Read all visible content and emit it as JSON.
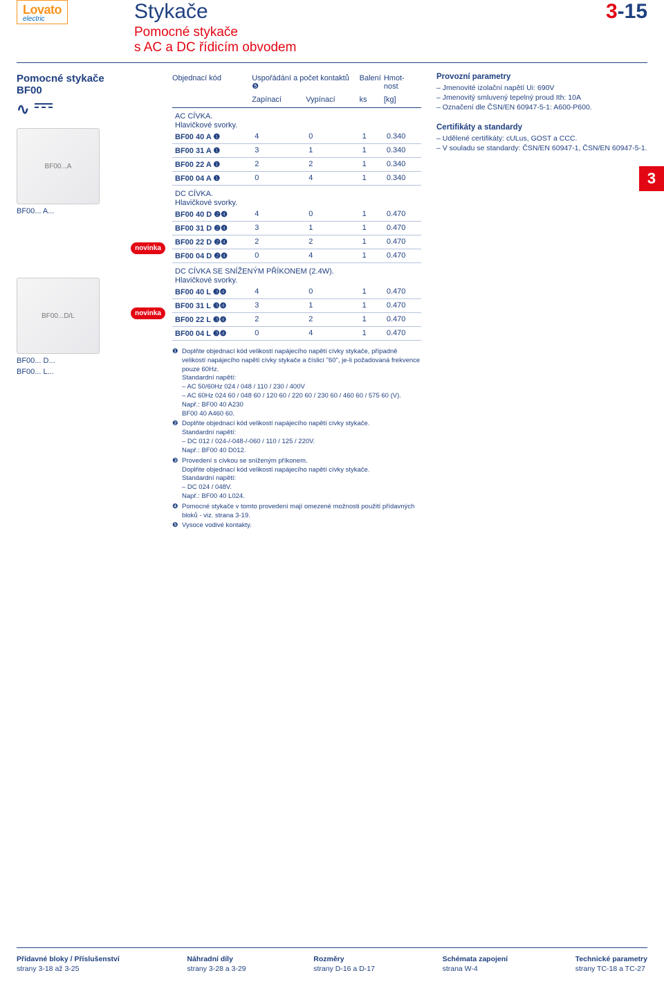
{
  "brand": {
    "name": "Lovato",
    "sub": "electric"
  },
  "page_number": {
    "prefix": "3",
    "suffix": "-15"
  },
  "header": {
    "title": "Stykače",
    "subtitle1": "Pomocné stykače",
    "subtitle2": "s AC a DC řídicím obvodem"
  },
  "left": {
    "section_title": "Pomocné stykače BF00",
    "captions": [
      "BF00... A...",
      "BF00... D...",
      "BF00... L..."
    ],
    "novinka": "novinka"
  },
  "table": {
    "headers": {
      "c1": "Objednací kód",
      "c2": "Uspořádání a počet kontaktů ❺",
      "c3": "Balení",
      "c4": "Hmot-nost",
      "s1": "Zapínací",
      "s2": "Vypínací",
      "s3": "ks",
      "s4": "[kg]"
    },
    "sections": [
      {
        "label": "AC CÍVKA.",
        "sub": "Hlavičkové svorky.",
        "rows": [
          {
            "code": "BF00 40 A ❶",
            "z": "4",
            "v": "0",
            "b": "1",
            "w": "0.340"
          },
          {
            "code": "BF00 31 A ❶",
            "z": "3",
            "v": "1",
            "b": "1",
            "w": "0.340"
          },
          {
            "code": "BF00 22 A ❶",
            "z": "2",
            "v": "2",
            "b": "1",
            "w": "0.340"
          },
          {
            "code": "BF00 04 A ❶",
            "z": "0",
            "v": "4",
            "b": "1",
            "w": "0.340"
          }
        ]
      },
      {
        "label": "DC CÍVKA.",
        "sub": "Hlavičkové svorky.",
        "rows": [
          {
            "code": "BF00 40 D ❷❹",
            "z": "4",
            "v": "0",
            "b": "1",
            "w": "0.470"
          },
          {
            "code": "BF00 31 D ❷❹",
            "z": "3",
            "v": "1",
            "b": "1",
            "w": "0.470"
          },
          {
            "code": "BF00 22 D ❷❹",
            "z": "2",
            "v": "2",
            "b": "1",
            "w": "0.470"
          },
          {
            "code": "BF00 04 D ❷❹",
            "z": "0",
            "v": "4",
            "b": "1",
            "w": "0.470"
          }
        ]
      },
      {
        "label": "DC CÍVKA SE SNÍŽENÝM PŘÍKONEM (2.4W).",
        "sub": "Hlavičkové svorky.",
        "rows": [
          {
            "code": "BF00 40 L ❸❹",
            "z": "4",
            "v": "0",
            "b": "1",
            "w": "0.470"
          },
          {
            "code": "BF00 31 L ❸❹",
            "z": "3",
            "v": "1",
            "b": "1",
            "w": "0.470"
          },
          {
            "code": "BF00 22 L ❸❹",
            "z": "2",
            "v": "2",
            "b": "1",
            "w": "0.470"
          },
          {
            "code": "BF00 04 L ❸❹",
            "z": "0",
            "v": "4",
            "b": "1",
            "w": "0.470"
          }
        ]
      }
    ]
  },
  "footnotes": [
    {
      "n": "❶",
      "t": "Doplňte objednací kód velikostí napájecího napětí cívky stykače, případně velikostí napájecího napětí cívky stykače a číslicí \"60\", je-li požadovaná frekvence pouze 60Hz.\nStandardní napětí:\n– AC 50/60Hz  024 / 048 / 110 / 230 / 400V\n– AC 60Hz      024 60 / 048 60 / 120 60 / 220 60 / 230 60 / 460 60 / 575 60 (V).\nNapř.:    BF00 40 A230\n             BF00 40 A460 60."
    },
    {
      "n": "❷",
      "t": "Doplňte objednací kód velikostí napájecího napětí cívky stykače.\nStandardní napětí:\n– DC      012 / 024-/-048-/-060 / 110 / 125 / 220V.\nNapř.:    BF00 40 D012."
    },
    {
      "n": "❸",
      "t": "Provedení s cívkou se sníženým příkonem.\nDoplňte objednací kód velikostí napájecího napětí cívky stykače.\nStandardní napětí:\n– DC      024 / 048V.\nNapř.:    BF00 40 L024."
    },
    {
      "n": "❹",
      "t": "Pomocné stykače v tomto provedení mají omezené možnosti použití přídavných bloků - viz. strana 3-19."
    },
    {
      "n": "❺",
      "t": "Vysoce vodivé kontakty."
    }
  ],
  "right": {
    "params_title": "Provozní parametry",
    "params": [
      "Jmenovité izolační napětí Ui: 690V",
      "Jmenovitý smluvený tepelný proud Ith: 10A",
      "Označení dle ČSN/EN 60947-5-1: A600-P600."
    ],
    "cert_title": "Certifikáty a standardy",
    "cert": [
      "Udělené certifikáty: cULus, GOST a CCC.",
      "V souladu se standardy: ČSN/EN 60947-1, ČSN/EN 60947-5-1."
    ]
  },
  "side_tab": "3",
  "footer": [
    {
      "t": "Přídavné bloky / Příslušenství",
      "s": "strany 3-18 až 3-25"
    },
    {
      "t": "Náhradní díly",
      "s": "strany 3-28 a 3-29"
    },
    {
      "t": "Rozměry",
      "s": "strany D-16 a D-17"
    },
    {
      "t": "Schémata zapojení",
      "s": "strana W-4"
    },
    {
      "t": "Technické parametry",
      "s": "strany TC-18 a TC-27"
    }
  ],
  "colors": {
    "primary_blue": "#204080",
    "accent_red": "#e30613",
    "orange": "#f7941e"
  }
}
